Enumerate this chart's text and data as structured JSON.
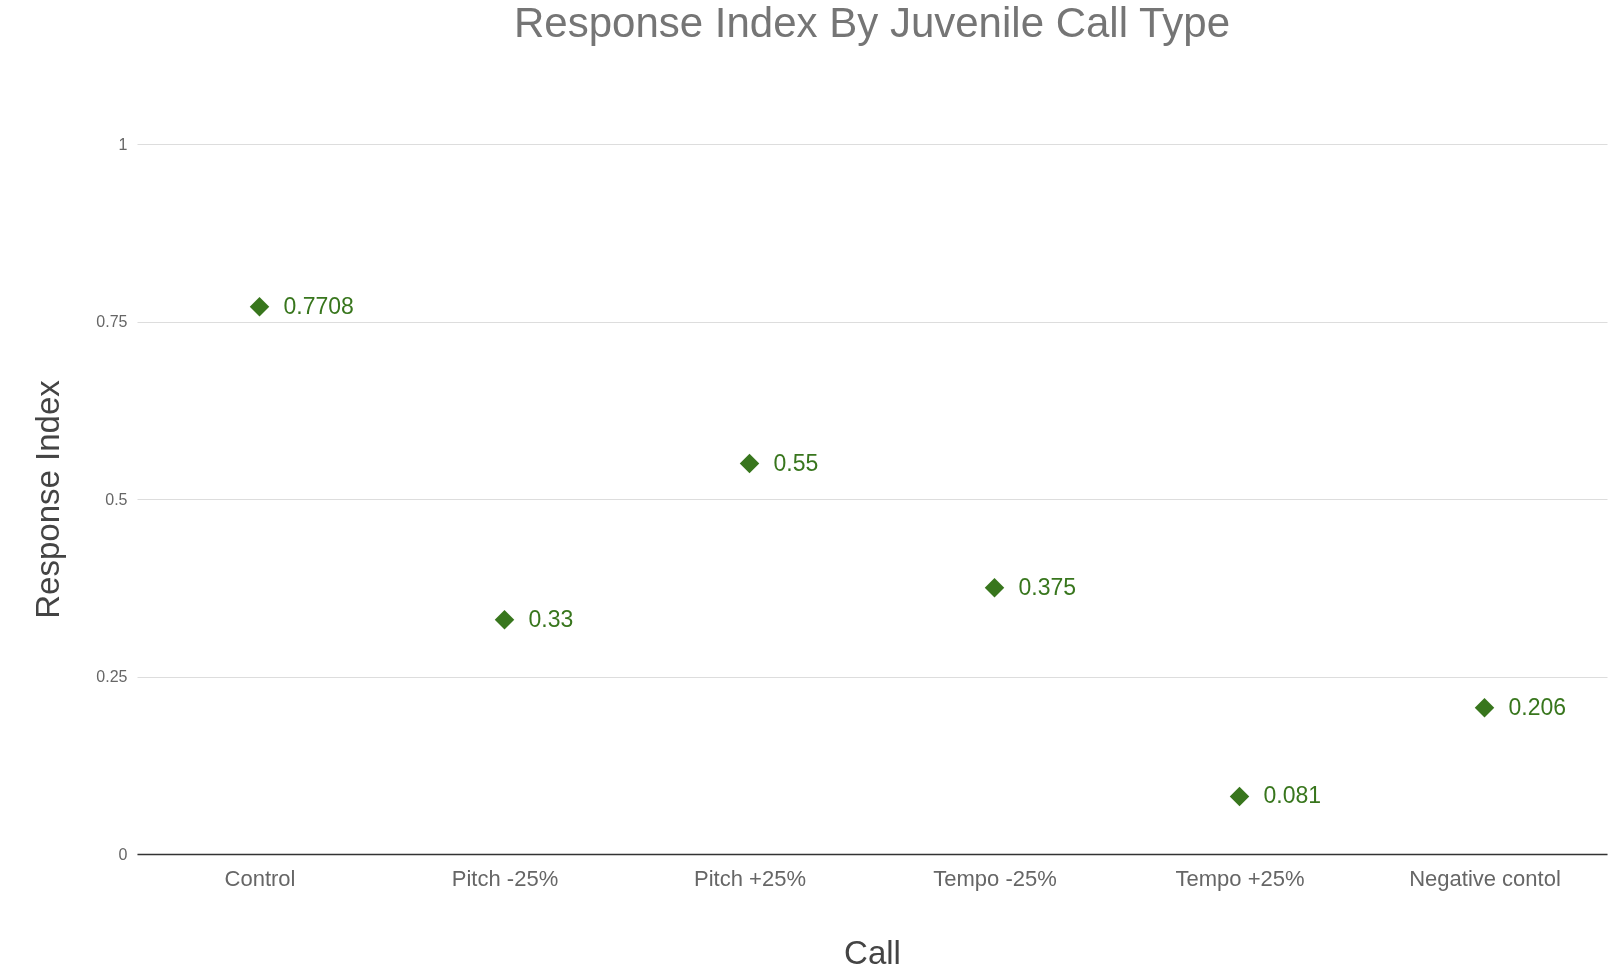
{
  "chart_data": {
    "type": "scatter",
    "title": "Response Index By Juvenile Call Type",
    "xlabel": "Call",
    "ylabel": "Response Index",
    "categories": [
      "Control",
      "Pitch -25%",
      "Pitch +25%",
      "Tempo -25%",
      "Tempo +25%",
      "Negative contol"
    ],
    "series": [
      {
        "color": "#38761d",
        "values": [
          0.7708,
          0.33,
          0.55,
          0.375,
          0.081,
          0.206
        ]
      }
    ],
    "ylim": [
      0,
      1
    ],
    "yticks": [
      0,
      0.25,
      0.5,
      0.75,
      1
    ],
    "grid": "y",
    "marker": "diamond",
    "data_labels": true,
    "legend": false
  }
}
